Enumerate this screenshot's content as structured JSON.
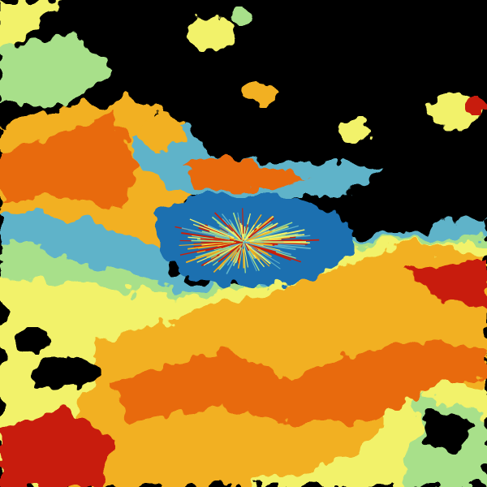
{
  "image": {
    "kind": "weather-radar-reflectivity",
    "palette": {
      "background": "#000000",
      "low": "#1a6fb0",
      "low_mid": "#5fb3c9",
      "mid": "#a8e08a",
      "mid_high": "#f2f26a",
      "high": "#f2b020",
      "higher": "#e86a10",
      "highest": "#c81e0a"
    }
  }
}
